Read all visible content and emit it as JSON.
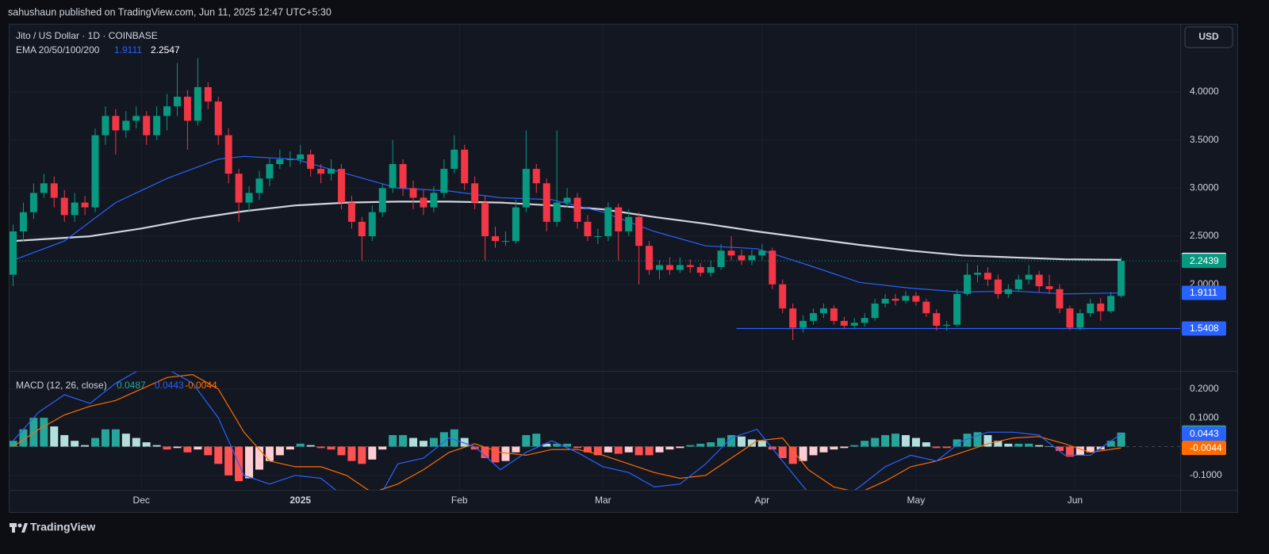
{
  "header": "sahushaun published on TradingView.com, Jun 11, 2025 12:47 UTC+5:30",
  "footer": "TradingView",
  "chart_data": [
    {
      "type": "candlestick",
      "title": "Jito / US Dollar · 1D · COINBASE",
      "currency": "USD",
      "indicator": "EMA 20/50/100/200",
      "ylim": [
        1.1,
        4.7
      ],
      "yticks": [
        {
          "value": 2,
          "label": "2.0000"
        },
        {
          "value": 2.5,
          "label": "2.5000"
        },
        {
          "value": 3,
          "label": "3.0000"
        },
        {
          "value": 3.5,
          "label": "3.5000"
        },
        {
          "value": 4,
          "label": "4.0000"
        }
      ],
      "xlim": [
        -25.7,
        202.5
      ],
      "xticks": [
        {
          "value": 0,
          "label": "Dec"
        },
        {
          "value": 31,
          "label": "2025"
        },
        {
          "value": 62,
          "label": "Feb"
        },
        {
          "value": 90,
          "label": "Mar"
        },
        {
          "value": 121,
          "label": "Apr"
        },
        {
          "value": 151,
          "label": "May"
        },
        {
          "value": 182,
          "label": "Jun"
        }
      ],
      "grid": true,
      "up_color": "#089981",
      "down_color": "#f23645",
      "candles": [
        [
          -25,
          2.1,
          2.62,
          1.98,
          2.55
        ],
        [
          -23,
          2.55,
          2.85,
          2.45,
          2.75
        ],
        [
          -21,
          2.75,
          3.05,
          2.68,
          2.95
        ],
        [
          -19,
          2.95,
          3.15,
          2.9,
          3.05
        ],
        [
          -17,
          3.05,
          3.12,
          2.8,
          2.9
        ],
        [
          -15,
          2.9,
          2.98,
          2.65,
          2.72
        ],
        [
          -13,
          2.72,
          2.95,
          2.65,
          2.85
        ],
        [
          -11,
          2.85,
          2.92,
          2.72,
          2.8
        ],
        [
          -9,
          2.8,
          3.62,
          2.75,
          3.55
        ],
        [
          -7,
          3.55,
          3.85,
          3.45,
          3.75
        ],
        [
          -5,
          3.75,
          3.82,
          3.35,
          3.6
        ],
        [
          -3,
          3.6,
          3.8,
          3.52,
          3.7
        ],
        [
          -1,
          3.7,
          3.85,
          3.62,
          3.75
        ],
        [
          1,
          3.75,
          3.8,
          3.45,
          3.55
        ],
        [
          3,
          3.55,
          3.85,
          3.5,
          3.75
        ],
        [
          5,
          3.75,
          3.98,
          3.6,
          3.85
        ],
        [
          7,
          3.85,
          4.3,
          3.75,
          3.95
        ],
        [
          9,
          3.95,
          4.02,
          3.4,
          3.7
        ],
        [
          11,
          3.7,
          4.35,
          3.65,
          4.05
        ],
        [
          13,
          4.05,
          4.1,
          3.82,
          3.9
        ],
        [
          15,
          3.9,
          3.95,
          3.45,
          3.55
        ],
        [
          17,
          3.55,
          3.62,
          3.05,
          3.15
        ],
        [
          19,
          3.15,
          3.2,
          2.65,
          2.85
        ],
        [
          21,
          2.85,
          3.02,
          2.75,
          2.95
        ],
        [
          23,
          2.95,
          3.18,
          2.88,
          3.1
        ],
        [
          25,
          3.1,
          3.32,
          3.02,
          3.25
        ],
        [
          27,
          3.25,
          3.4,
          3.2,
          3.3
        ],
        [
          29,
          3.3,
          3.38,
          3.22,
          3.3
        ],
        [
          31,
          3.3,
          3.45,
          3.25,
          3.35
        ],
        [
          33,
          3.35,
          3.4,
          3.12,
          3.2
        ],
        [
          35,
          3.2,
          3.25,
          3.05,
          3.15
        ],
        [
          37,
          3.15,
          3.3,
          3.08,
          3.2
        ],
        [
          39,
          3.2,
          3.25,
          2.78,
          2.85
        ],
        [
          41,
          2.85,
          2.92,
          2.58,
          2.65
        ],
        [
          43,
          2.65,
          2.7,
          2.25,
          2.5
        ],
        [
          45,
          2.5,
          2.82,
          2.45,
          2.75
        ],
        [
          47,
          2.75,
          3.05,
          2.7,
          3.0
        ],
        [
          49,
          3.0,
          3.5,
          2.95,
          3.25
        ],
        [
          51,
          3.25,
          3.3,
          2.92,
          3.0
        ],
        [
          53,
          3.0,
          3.08,
          2.78,
          2.9
        ],
        [
          55,
          2.9,
          2.98,
          2.72,
          2.8
        ],
        [
          57,
          2.8,
          3.02,
          2.75,
          2.95
        ],
        [
          59,
          2.95,
          3.3,
          2.9,
          3.2
        ],
        [
          61,
          3.2,
          3.55,
          3.15,
          3.4
        ],
        [
          63,
          3.4,
          3.45,
          2.98,
          3.05
        ],
        [
          65,
          3.05,
          3.12,
          2.78,
          2.85
        ],
        [
          67,
          2.85,
          2.92,
          2.25,
          2.5
        ],
        [
          69,
          2.5,
          2.6,
          2.38,
          2.45
        ],
        [
          71,
          2.45,
          2.55,
          2.4,
          2.45
        ],
        [
          73,
          2.45,
          2.88,
          2.42,
          2.8
        ],
        [
          75,
          2.8,
          3.6,
          2.75,
          3.2
        ],
        [
          77,
          3.2,
          3.25,
          2.95,
          3.05
        ],
        [
          79,
          3.05,
          3.1,
          2.55,
          2.65
        ],
        [
          81,
          2.65,
          3.6,
          2.6,
          2.85
        ],
        [
          83,
          2.85,
          3.0,
          2.8,
          2.9
        ],
        [
          85,
          2.9,
          2.95,
          2.58,
          2.65
        ],
        [
          87,
          2.65,
          2.72,
          2.45,
          2.5
        ],
        [
          89,
          2.5,
          2.58,
          2.42,
          2.5
        ],
        [
          91,
          2.5,
          2.85,
          2.45,
          2.8
        ],
        [
          93,
          2.8,
          2.84,
          2.25,
          2.55
        ],
        [
          95,
          2.55,
          2.78,
          2.5,
          2.7
        ],
        [
          97,
          2.7,
          2.75,
          2.0,
          2.4
        ],
        [
          99,
          2.4,
          2.45,
          2.1,
          2.15
        ],
        [
          101,
          2.15,
          2.25,
          2.05,
          2.2
        ],
        [
          103,
          2.2,
          2.28,
          2.1,
          2.15
        ],
        [
          105,
          2.15,
          2.28,
          2.12,
          2.2
        ],
        [
          107,
          2.2,
          2.26,
          2.12,
          2.18
        ],
        [
          109,
          2.18,
          2.22,
          2.08,
          2.12
        ],
        [
          111,
          2.12,
          2.25,
          2.08,
          2.18
        ],
        [
          113,
          2.18,
          2.42,
          2.15,
          2.35
        ],
        [
          115,
          2.35,
          2.5,
          2.25,
          2.3
        ],
        [
          117,
          2.3,
          2.36,
          2.2,
          2.25
        ],
        [
          119,
          2.25,
          2.36,
          2.2,
          2.3
        ],
        [
          121,
          2.3,
          2.42,
          2.25,
          2.35
        ],
        [
          123,
          2.35,
          2.38,
          1.95,
          2.0
        ],
        [
          125,
          2.0,
          2.05,
          1.7,
          1.75
        ],
        [
          127,
          1.75,
          1.8,
          1.42,
          1.55
        ],
        [
          129,
          1.55,
          1.68,
          1.5,
          1.62
        ],
        [
          131,
          1.62,
          1.75,
          1.58,
          1.7
        ],
        [
          133,
          1.7,
          1.8,
          1.65,
          1.75
        ],
        [
          135,
          1.75,
          1.78,
          1.58,
          1.62
        ],
        [
          137,
          1.62,
          1.66,
          1.54,
          1.57
        ],
        [
          139,
          1.57,
          1.65,
          1.54,
          1.6
        ],
        [
          141,
          1.6,
          1.7,
          1.56,
          1.65
        ],
        [
          143,
          1.65,
          1.85,
          1.62,
          1.8
        ],
        [
          145,
          1.8,
          1.9,
          1.76,
          1.85
        ],
        [
          147,
          1.85,
          1.9,
          1.78,
          1.83
        ],
        [
          149,
          1.83,
          1.93,
          1.8,
          1.88
        ],
        [
          151,
          1.88,
          1.92,
          1.78,
          1.82
        ],
        [
          153,
          1.82,
          1.85,
          1.66,
          1.7
        ],
        [
          155,
          1.7,
          1.74,
          1.52,
          1.57
        ],
        [
          157,
          1.57,
          1.62,
          1.52,
          1.58
        ],
        [
          159,
          1.58,
          1.95,
          1.56,
          1.9
        ],
        [
          161,
          1.9,
          2.22,
          1.88,
          2.1
        ],
        [
          163,
          2.1,
          2.2,
          2.02,
          2.12
        ],
        [
          165,
          2.12,
          2.18,
          1.98,
          2.05
        ],
        [
          167,
          2.05,
          2.1,
          1.85,
          1.9
        ],
        [
          169,
          1.9,
          2.0,
          1.86,
          1.95
        ],
        [
          171,
          1.95,
          2.1,
          1.92,
          2.05
        ],
        [
          173,
          2.05,
          2.2,
          2.0,
          2.1
        ],
        [
          175,
          2.1,
          2.14,
          1.92,
          1.98
        ],
        [
          177,
          1.98,
          2.1,
          1.9,
          1.95
        ],
        [
          179,
          1.95,
          2.0,
          1.7,
          1.75
        ],
        [
          181,
          1.75,
          1.78,
          1.52,
          1.55
        ],
        [
          183,
          1.55,
          1.74,
          1.52,
          1.7
        ],
        [
          185,
          1.7,
          1.85,
          1.66,
          1.8
        ],
        [
          187,
          1.8,
          1.86,
          1.62,
          1.72
        ],
        [
          189,
          1.72,
          1.92,
          1.7,
          1.88
        ],
        [
          191,
          1.88,
          2.28,
          1.86,
          2.2439
        ]
      ],
      "series": [
        {
          "color": "#2962ff",
          "x": [
            -25,
            -15,
            -5,
            5,
            15,
            20,
            30,
            40,
            50,
            60,
            70,
            80,
            90,
            100,
            110,
            120,
            130,
            140,
            150,
            160,
            170,
            180,
            191
          ],
          "values": [
            2.25,
            2.45,
            2.85,
            3.1,
            3.3,
            3.33,
            3.3,
            3.15,
            3.0,
            2.97,
            2.9,
            2.88,
            2.75,
            2.55,
            2.4,
            2.37,
            2.2,
            2.02,
            1.96,
            1.92,
            1.93,
            1.9,
            1.9111
          ]
        },
        {
          "color": "#d1d4dc",
          "x": [
            -25,
            -10,
            0,
            10,
            20,
            30,
            40,
            50,
            60,
            70,
            80,
            90,
            100,
            110,
            120,
            130,
            140,
            150,
            160,
            170,
            180,
            191
          ],
          "values": [
            2.45,
            2.5,
            2.58,
            2.68,
            2.76,
            2.82,
            2.85,
            2.86,
            2.86,
            2.85,
            2.82,
            2.78,
            2.7,
            2.63,
            2.55,
            2.48,
            2.41,
            2.35,
            2.3,
            2.28,
            2.26,
            2.2547
          ]
        }
      ],
      "support": {
        "value": 1.5408,
        "x_start": 116,
        "color": "#2962ff"
      }
    },
    {
      "type": "macd",
      "title": "MACD (12, 26, close)",
      "ylim": [
        -0.15,
        0.26
      ],
      "yticks": [
        {
          "value": -0.1,
          "label": "-0.1000"
        },
        {
          "value": 0.1,
          "label": "0.1000"
        },
        {
          "value": 0.2,
          "label": "0.2000"
        }
      ],
      "xlim": [
        -25.7,
        202.5
      ],
      "histogram": {
        "colors": [
          "#26a69a",
          "#b2dfdb",
          "#ff5252",
          "#ffcdd2"
        ],
        "values": [
          0.02,
          0.06,
          0.1,
          0.1,
          0.07,
          0.04,
          0.02,
          0.005,
          0.03,
          0.06,
          0.06,
          0.045,
          0.03,
          0.015,
          0.005,
          -0.01,
          -0.005,
          -0.02,
          -0.01,
          -0.03,
          -0.06,
          -0.1,
          -0.12,
          -0.11,
          -0.08,
          -0.05,
          -0.03,
          -0.01,
          0.01,
          0.005,
          -0.005,
          -0.01,
          -0.03,
          -0.05,
          -0.06,
          -0.045,
          -0.01,
          0.04,
          0.04,
          0.03,
          0.02,
          0.03,
          0.05,
          0.06,
          0.03,
          -0.01,
          -0.04,
          -0.055,
          -0.05,
          -0.02,
          0.04,
          0.045,
          0.01,
          0.01,
          0.01,
          -0.005,
          -0.02,
          -0.03,
          -0.02,
          -0.025,
          -0.02,
          -0.03,
          -0.03,
          -0.02,
          -0.01,
          -0.005,
          0.005,
          0.01,
          0.015,
          0.03,
          0.04,
          0.035,
          0.025,
          0.02,
          -0.01,
          -0.04,
          -0.06,
          -0.05,
          -0.03,
          -0.02,
          -0.01,
          -0.005,
          0.005,
          0.02,
          0.03,
          0.04,
          0.045,
          0.04,
          0.03,
          0.015,
          -0.005,
          -0.005,
          0.025,
          0.045,
          0.05,
          0.04,
          0.02,
          0.01,
          0.01,
          0.01,
          0.005,
          0.0,
          -0.015,
          -0.035,
          -0.03,
          -0.02,
          -0.01,
          0.02,
          0.0487
        ]
      },
      "series": [
        {
          "color": "#2962ff",
          "x": [
            -25,
            -20,
            -15,
            -10,
            -5,
            0,
            5,
            10,
            15,
            20,
            25,
            30,
            35,
            40,
            45,
            50,
            55,
            60,
            65,
            70,
            75,
            80,
            85,
            90,
            95,
            100,
            105,
            110,
            115,
            120,
            125,
            130,
            135,
            140,
            145,
            150,
            155,
            160,
            165,
            170,
            175,
            180,
            185,
            191
          ],
          "values": [
            0.02,
            0.12,
            0.18,
            0.15,
            0.22,
            0.27,
            0.27,
            0.22,
            0.1,
            -0.1,
            -0.13,
            -0.1,
            -0.11,
            -0.18,
            -0.22,
            -0.06,
            -0.04,
            0.03,
            0.0,
            -0.08,
            -0.02,
            0.02,
            -0.02,
            -0.07,
            -0.09,
            -0.14,
            -0.13,
            -0.06,
            0.03,
            0.06,
            -0.05,
            -0.16,
            -0.2,
            -0.14,
            -0.07,
            -0.03,
            -0.05,
            0.02,
            0.05,
            0.05,
            0.04,
            -0.03,
            -0.03,
            0.0443
          ]
        },
        {
          "color": "#ff6d00",
          "x": [
            -25,
            -20,
            -15,
            -10,
            -5,
            0,
            5,
            10,
            15,
            20,
            25,
            30,
            35,
            40,
            45,
            50,
            55,
            60,
            65,
            70,
            75,
            80,
            85,
            90,
            95,
            100,
            105,
            110,
            115,
            120,
            125,
            130,
            135,
            140,
            145,
            150,
            155,
            160,
            165,
            170,
            175,
            180,
            185,
            191
          ],
          "values": [
            0.0,
            0.06,
            0.11,
            0.14,
            0.16,
            0.2,
            0.24,
            0.25,
            0.2,
            0.05,
            -0.05,
            -0.07,
            -0.07,
            -0.1,
            -0.16,
            -0.13,
            -0.08,
            -0.02,
            0.01,
            -0.02,
            -0.03,
            -0.01,
            -0.01,
            -0.03,
            -0.06,
            -0.09,
            -0.11,
            -0.1,
            -0.04,
            0.02,
            0.03,
            -0.08,
            -0.14,
            -0.16,
            -0.12,
            -0.07,
            -0.05,
            -0.02,
            0.01,
            0.03,
            0.035,
            0.01,
            -0.02,
            -0.0044
          ]
        }
      ]
    }
  ]
}
